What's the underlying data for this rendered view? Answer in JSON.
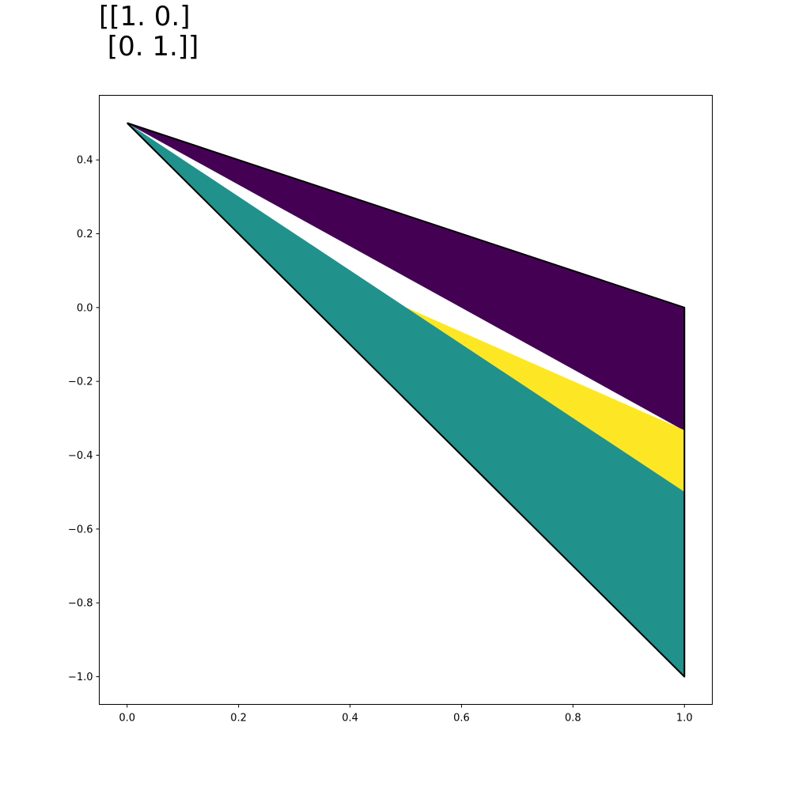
{
  "chart_data": {
    "type": "area",
    "title_lines": [
      "[[1. 0.]",
      " [0. 1.]]"
    ],
    "xlabel": "",
    "ylabel": "",
    "xlim": [
      -0.05,
      1.05
    ],
    "ylim": [
      -1.075,
      0.575
    ],
    "grid": false,
    "legend": "none",
    "x_ticks": [
      {
        "value": 0.0,
        "label": "0.0"
      },
      {
        "value": 0.2,
        "label": "0.2"
      },
      {
        "value": 0.4,
        "label": "0.4"
      },
      {
        "value": 0.6,
        "label": "0.6"
      },
      {
        "value": 0.8,
        "label": "0.8"
      },
      {
        "value": 1.0,
        "label": "1.0"
      }
    ],
    "y_ticks": [
      {
        "value": 0.4,
        "label": "0.4"
      },
      {
        "value": 0.2,
        "label": "0.2"
      },
      {
        "value": 0.0,
        "label": "0.0"
      },
      {
        "value": -0.2,
        "label": "−0.2"
      },
      {
        "value": -0.4,
        "label": "−0.4"
      },
      {
        "value": -0.6,
        "label": "−0.6"
      },
      {
        "value": -0.8,
        "label": "−0.8"
      },
      {
        "value": -1.0,
        "label": "−1.0"
      }
    ],
    "regions": [
      {
        "color": "#440154",
        "points": [
          [
            0,
            0.5
          ],
          [
            1,
            0
          ],
          [
            1,
            -0.333
          ],
          [
            0,
            0.5
          ]
        ]
      },
      {
        "color": "#fde725",
        "points": [
          [
            0.5,
            0
          ],
          [
            1,
            -0.333
          ],
          [
            1,
            -0.5
          ]
        ]
      },
      {
        "color": "#21918c",
        "points": [
          [
            0,
            0.5
          ],
          [
            0.5,
            0
          ],
          [
            1,
            -0.5
          ],
          [
            1,
            -1
          ],
          [
            0,
            0.5
          ]
        ]
      }
    ],
    "outline": {
      "color": "#000000",
      "points": [
        [
          0,
          0.5
        ],
        [
          1,
          0
        ],
        [
          1,
          -1
        ],
        [
          0,
          0.5
        ]
      ]
    }
  }
}
